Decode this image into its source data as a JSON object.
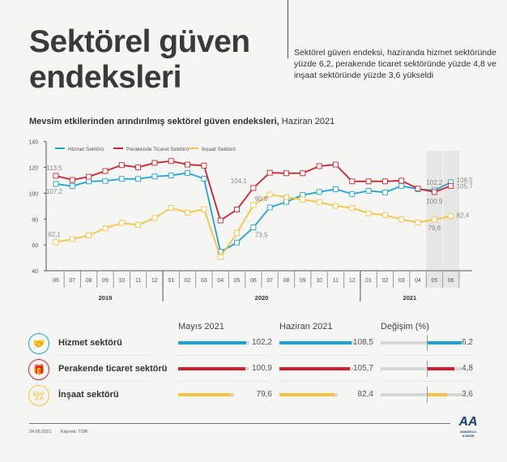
{
  "header": {
    "title_line1": "Sektörel güven",
    "title_line2": "endeksleri",
    "lead": "Sektörel güven endeksi, haziranda hizmet sektöründe yüzde 6,2, perakende ticaret sektöründe yüzde 4,8 ve inşaat sektöründe yüzde 3,6 yükseldi"
  },
  "subtitle": {
    "bold": "Mevsim etkilerinden arındırılmış sektörel güven endeksleri,",
    "normal": " Haziran 2021"
  },
  "chart_data": {
    "type": "line",
    "x": [
      "06",
      "07",
      "08",
      "09",
      "10",
      "11",
      "12",
      "01",
      "02",
      "03",
      "04",
      "05",
      "06",
      "07",
      "08",
      "09",
      "10",
      "11",
      "12",
      "01",
      "02",
      "03",
      "04",
      "05",
      "06"
    ],
    "years": [
      {
        "label": "2019",
        "from": 0,
        "to": 6
      },
      {
        "label": "2020",
        "from": 7,
        "to": 18
      },
      {
        "label": "2021",
        "from": 19,
        "to": 24
      }
    ],
    "ylim": [
      40,
      140
    ],
    "yticks": [
      40,
      60,
      80,
      100,
      120,
      140
    ],
    "highlight_range": [
      "05",
      "06"
    ],
    "legend_position": "top-left",
    "series": [
      {
        "name": "Hizmet Sektörü",
        "color": "#1ba3d6",
        "values": [
          107.2,
          105.5,
          109.2,
          109.5,
          111.1,
          111.1,
          113.0,
          113.8,
          115.7,
          111.3,
          54.6,
          61.8,
          73.5,
          89.0,
          93.3,
          98.6,
          101.0,
          103.2,
          99.4,
          101.9,
          100.7,
          105.7,
          103.2,
          102.2,
          108.5
        ]
      },
      {
        "name": "Perakende Ticaret Sektörü",
        "color": "#d0202e",
        "values": [
          113.5,
          110.3,
          112.8,
          117.2,
          121.8,
          120.1,
          123.5,
          124.9,
          122.2,
          121.4,
          78.9,
          87.4,
          104.1,
          115.9,
          115.5,
          115.5,
          121.0,
          122.2,
          109.2,
          109.2,
          109.2,
          109.7,
          103.6,
          100.9,
          105.7
        ]
      },
      {
        "name": "İnşaat Sektörü",
        "color": "#f5c342",
        "values": [
          62.1,
          64.5,
          67.4,
          72.8,
          77.0,
          75.4,
          80.8,
          88.7,
          85.0,
          87.7,
          50.7,
          69.1,
          90.8,
          99.0,
          96.9,
          95.2,
          93.1,
          90.2,
          88.7,
          84.4,
          83.1,
          79.7,
          77.4,
          79.6,
          82.4
        ]
      }
    ],
    "data_labels": [
      {
        "series": 0,
        "index": 0,
        "text": "107,2"
      },
      {
        "series": 1,
        "index": 0,
        "text": "113,5"
      },
      {
        "series": 2,
        "index": 0,
        "text": "62,1"
      },
      {
        "series": 1,
        "index": 12,
        "text": "104,1"
      },
      {
        "series": 2,
        "index": 12,
        "text": "90,8"
      },
      {
        "series": 0,
        "index": 12,
        "text": "73,5"
      },
      {
        "series": 0,
        "index": 23,
        "text": "102,2"
      },
      {
        "series": 1,
        "index": 23,
        "text": "100,9"
      },
      {
        "series": 2,
        "index": 23,
        "text": "79,6"
      },
      {
        "series": 0,
        "index": 24,
        "text": "108,5"
      },
      {
        "series": 1,
        "index": 24,
        "text": "105,7"
      },
      {
        "series": 2,
        "index": 24,
        "text": "82,4"
      }
    ]
  },
  "table": {
    "headers": [
      "Mayıs 2021",
      "Haziran 2021",
      "Değişim (%)"
    ],
    "rows": [
      {
        "label": "Hizmet sektörü",
        "icon": "handshake-icon",
        "color": "#1ba3d6",
        "may": 102.2,
        "may_text": "102,2",
        "jun": 108.5,
        "jun_text": "108,5",
        "change": 6.2,
        "change_text": "6,2",
        "glyph": "🤝"
      },
      {
        "label": "Perakende ticaret sektörü",
        "icon": "gift-box-icon",
        "color": "#d0202e",
        "may": 100.9,
        "may_text": "100,9",
        "jun": 105.7,
        "jun_text": "105,7",
        "change": 4.8,
        "change_text": "4,8",
        "glyph": "🎁"
      },
      {
        "label": "İnşaat sektörü",
        "icon": "excavator-icon",
        "color": "#f5c342",
        "may": 79.6,
        "may_text": "79,6",
        "jun": 82.4,
        "jun_text": "82,4",
        "change": 3.6,
        "change_text": "3,6",
        "glyph": "🏗"
      }
    ]
  },
  "footer": {
    "date": "24.06.2021",
    "source": "Kaynak: TÜİK",
    "logo_text": "ANADOLU AJANSI",
    "logo_mark": "AA"
  }
}
